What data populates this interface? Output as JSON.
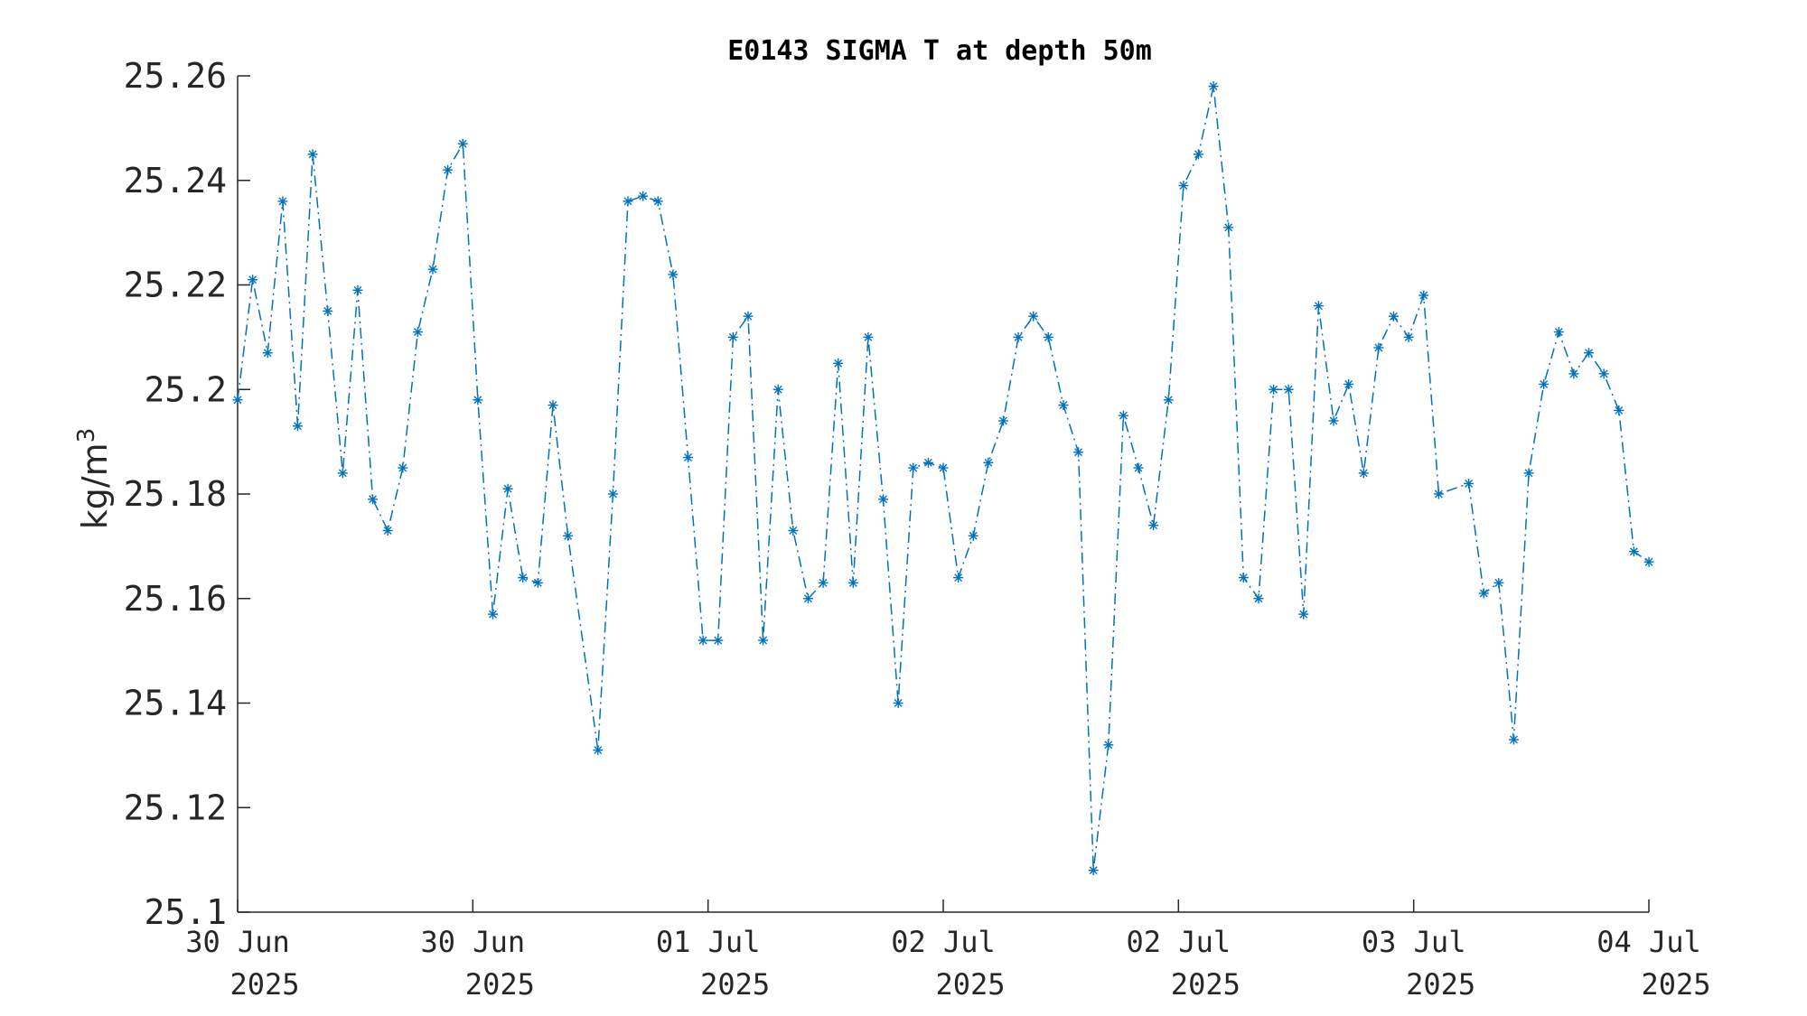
{
  "chart_data": {
    "type": "line",
    "title": "E0143 SIGMA T at depth 50m",
    "ylabel": "kg/m",
    "ylabel_superscript": "3",
    "ylim": [
      25.1,
      25.26
    ],
    "yticks": [
      25.1,
      25.12,
      25.14,
      25.16,
      25.18,
      25.2,
      25.22,
      25.24,
      25.26
    ],
    "ytick_labels": [
      "25.1",
      "25.12",
      "25.14",
      "25.16",
      "25.18",
      "25.2",
      "25.22",
      "25.24",
      "25.26"
    ],
    "xticks": [
      {
        "line1": "30 Jun",
        "line2": "2025"
      },
      {
        "line1": "30 Jun",
        "line2": "2025"
      },
      {
        "line1": "01 Jul",
        "line2": "2025"
      },
      {
        "line1": "02 Jul",
        "line2": "2025"
      },
      {
        "line1": "02 Jul",
        "line2": "2025"
      },
      {
        "line1": "03 Jul",
        "line2": "2025"
      },
      {
        "line1": "04 Jul",
        "line2": "2025"
      }
    ],
    "line_style": "dash-dot",
    "marker": "asterisk",
    "grid": false,
    "color": "#0072BD",
    "series": [
      {
        "values": [
          25.198,
          25.221,
          25.207,
          25.236,
          25.193,
          25.245,
          25.215,
          25.184,
          25.219,
          25.179,
          25.173,
          25.185,
          25.211,
          25.223,
          25.242,
          25.247,
          25.198,
          25.157,
          25.181,
          25.164,
          25.163,
          25.197,
          25.172,
          null,
          25.131,
          25.18,
          25.236,
          25.237,
          25.236,
          25.222,
          25.187,
          25.152,
          25.152,
          25.21,
          25.214,
          25.152,
          25.2,
          25.173,
          25.16,
          25.163,
          25.205,
          25.163,
          25.21,
          25.179,
          25.14,
          25.185,
          25.186,
          25.185,
          25.164,
          25.172,
          25.186,
          25.194,
          25.21,
          25.214,
          25.21,
          25.197,
          25.188,
          25.108,
          25.132,
          25.195,
          25.185,
          25.174,
          25.198,
          25.239,
          25.245,
          25.258,
          25.231,
          25.164,
          25.16,
          25.2,
          25.2,
          25.157,
          25.216,
          25.194,
          25.201,
          25.184,
          25.208,
          25.214,
          25.21,
          25.218,
          25.18,
          null,
          25.182,
          25.161,
          25.163,
          25.133,
          25.184,
          25.201,
          25.211,
          25.203,
          25.207,
          25.203,
          25.196,
          25.169,
          25.167
        ]
      }
    ]
  }
}
